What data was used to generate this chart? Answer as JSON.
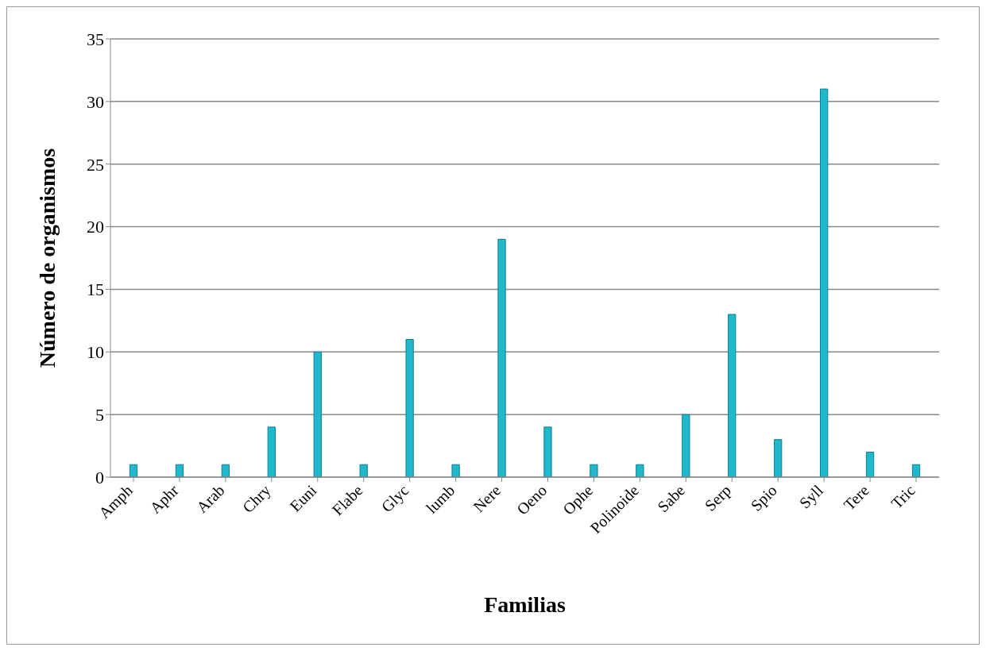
{
  "chart_data": {
    "type": "bar",
    "xlabel": "Familias",
    "ylabel": "Número de organismos",
    "categories": [
      "Amph",
      "Aphr",
      "Arab",
      "Chry",
      "Euni",
      "Flabe",
      "Glyc",
      "lumb",
      "Nere",
      "Oeno",
      "Ophe",
      "Polinoide",
      "Sabe",
      "Serp",
      "Spio",
      "Syll",
      "Tere",
      "Tric"
    ],
    "values": [
      1,
      1,
      1,
      4,
      10,
      1,
      11,
      1,
      19,
      4,
      1,
      1,
      5,
      13,
      3,
      31,
      2,
      1
    ],
    "color": "#1fb8cc",
    "ylim": [
      0,
      35
    ],
    "yticks": [
      0,
      5,
      10,
      15,
      20,
      25,
      30,
      35
    ],
    "grid": "y",
    "legend": false
  }
}
